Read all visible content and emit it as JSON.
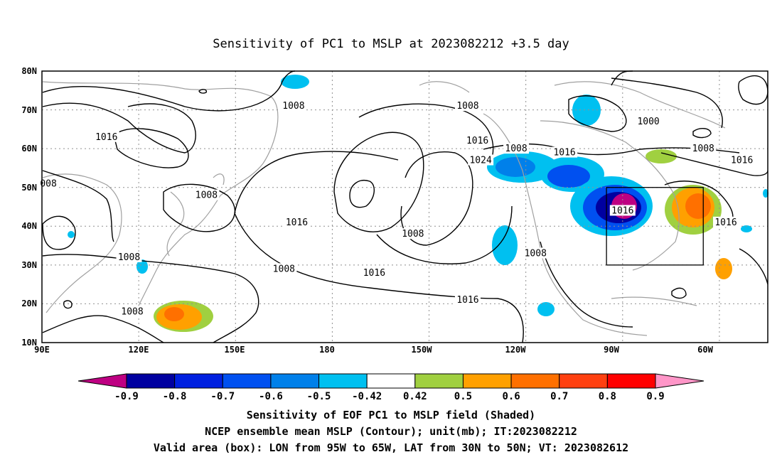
{
  "title": "Sensitivity of PC1 to MSLP at 2023082212 +3.5 day",
  "lon_ticks": [
    "90E",
    "120E",
    "150E",
    "180",
    "150W",
    "120W",
    "90W",
    "60W"
  ],
  "lat_ticks": [
    "10N",
    "20N",
    "30N",
    "40N",
    "50N",
    "60N",
    "70N",
    "80N"
  ],
  "contour_labels": [
    {
      "text": "1008",
      "lon": 168,
      "lat": 71
    },
    {
      "text": "1016",
      "lon": 110,
      "lat": 63
    },
    {
      "text": "008",
      "lon": 92,
      "lat": 51
    },
    {
      "text": "1008",
      "lon": 141,
      "lat": 48
    },
    {
      "text": "1016",
      "lon": 169,
      "lat": 41
    },
    {
      "text": "1008",
      "lon": 117,
      "lat": 32
    },
    {
      "text": "1008",
      "lon": 165,
      "lat": 29
    },
    {
      "text": "1008",
      "lon": 118,
      "lat": 18
    },
    {
      "text": "1008",
      "lon": 222,
      "lat": 71
    },
    {
      "text": "1016",
      "lon": 225,
      "lat": 62
    },
    {
      "text": "1024",
      "lon": 226,
      "lat": 57
    },
    {
      "text": "1008",
      "lon": 205,
      "lat": 38
    },
    {
      "text": "1016",
      "lon": 193,
      "lat": 28
    },
    {
      "text": "1016",
      "lon": 222,
      "lat": 21
    },
    {
      "text": "1008",
      "lon": 237,
      "lat": 60
    },
    {
      "text": "1016",
      "lon": 252,
      "lat": 59
    },
    {
      "text": "1000",
      "lon": 278,
      "lat": 67
    },
    {
      "text": "1008",
      "lon": 295,
      "lat": 60
    },
    {
      "text": "1016",
      "lon": 307,
      "lat": 57
    },
    {
      "text": "1016",
      "lon": 270,
      "lat": 44
    },
    {
      "text": "1008",
      "lon": 243,
      "lat": 33
    },
    {
      "text": "1016",
      "lon": 302,
      "lat": 41
    }
  ],
  "valid_box": {
    "lon_min": 265,
    "lon_max": 295,
    "lat_min": 30,
    "lat_max": 50
  },
  "colorbar": {
    "labels": [
      "-0.9",
      "-0.8",
      "-0.7",
      "-0.6",
      "-0.5",
      "-0.42",
      "0.42",
      "0.5",
      "0.6",
      "0.7",
      "0.8",
      "0.9"
    ],
    "colors": [
      "#be0082",
      "#0000a0",
      "#0020e0",
      "#0050f0",
      "#0080ea",
      "#00c0f0",
      "#ffffff",
      "#a0d040",
      "#ffa000",
      "#ff7000",
      "#ff4010",
      "#ff0000",
      "#ff96c8"
    ]
  },
  "footer": {
    "line1": "Sensitivity of EOF PC1 to MSLP field (Shaded)",
    "line2": "NCEP ensemble mean MSLP (Contour); unit(mb); IT:2023082212",
    "line3": "Valid area (box): LON from 95W to 65W, LAT from 30N to 50N; VT: 2023082612"
  }
}
